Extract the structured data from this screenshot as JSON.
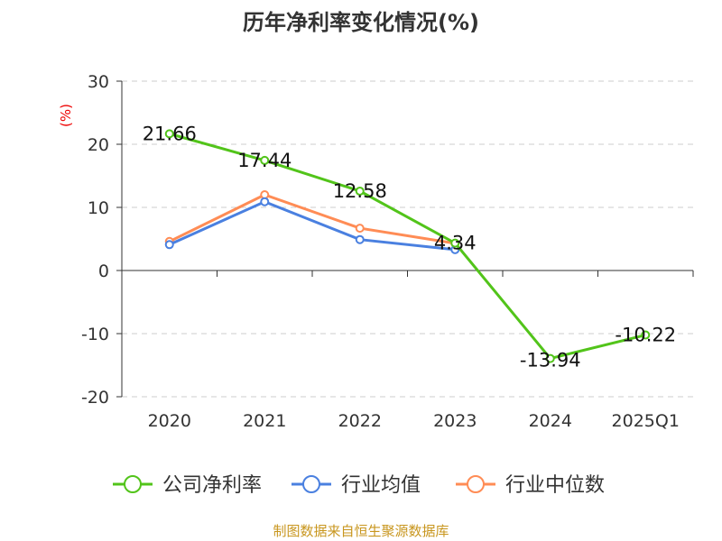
{
  "chart_data": {
    "type": "line",
    "title": "历年净利率变化情况(%)",
    "ylabel": "(%)",
    "categories": [
      "2020",
      "2021",
      "2022",
      "2023",
      "2024",
      "2025Q1"
    ],
    "ylim": [
      -20,
      30
    ],
    "yticks": [
      30,
      20,
      10,
      0,
      -10,
      -20
    ],
    "grid": true,
    "legend_position": "bottom",
    "series": [
      {
        "name": "公司净利率",
        "color": "#52c41a",
        "values": [
          21.66,
          17.44,
          12.58,
          4.34,
          -13.94,
          -10.22
        ],
        "labels": [
          "21.66",
          "17.44",
          "12.58",
          "4.34",
          "-13.94",
          "-10.22"
        ]
      },
      {
        "name": "行业均值",
        "color": "#4a80e0",
        "values": [
          4.1,
          10.9,
          4.9,
          3.3,
          null,
          null
        ]
      },
      {
        "name": "行业中位数",
        "color": "#ff8c55",
        "values": [
          4.6,
          12.0,
          6.7,
          4.3,
          null,
          null
        ]
      }
    ]
  },
  "footer": "制图数据来自恒生聚源数据库"
}
